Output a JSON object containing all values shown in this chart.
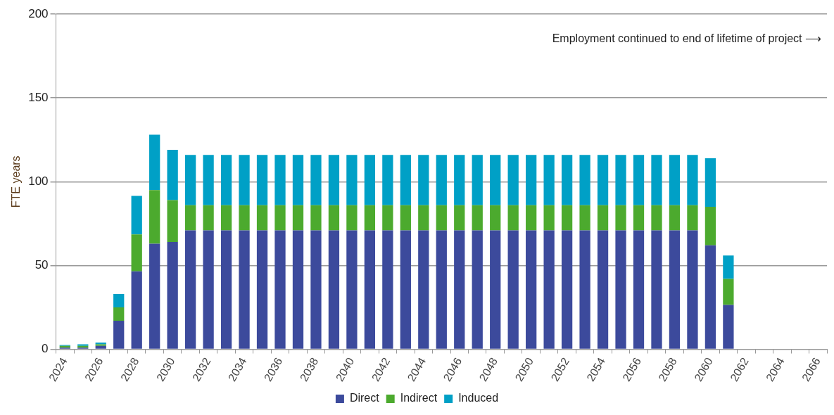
{
  "chart_data": {
    "type": "bar",
    "stacked": true,
    "ylabel": "FTE years",
    "categories": [
      "2024",
      null,
      "2026",
      null,
      "2028",
      null,
      "2030",
      null,
      "2032",
      null,
      "2034",
      null,
      "2036",
      null,
      "2038",
      null,
      "2040",
      null,
      "2042",
      null,
      "2044",
      null,
      "2046",
      null,
      "2048",
      null,
      "2050",
      null,
      "2052",
      null,
      "2054",
      null,
      "2056",
      null,
      "2058",
      null,
      "2060",
      null,
      "2062",
      null,
      "2064",
      null,
      "2066"
    ],
    "series": [
      {
        "name": "Direct",
        "color": "#3c4a9c",
        "values": [
          1,
          1,
          2,
          17,
          46.5,
          63,
          64,
          71,
          71,
          71,
          71,
          71,
          71,
          71,
          71,
          71,
          71,
          71,
          71,
          71,
          71,
          71,
          71,
          71,
          71,
          71,
          71,
          71,
          71,
          71,
          71,
          71,
          71,
          71,
          71,
          71,
          62,
          26.5,
          0,
          0,
          0,
          0,
          0
        ]
      },
      {
        "name": "Indirect",
        "color": "#4caa2e",
        "values": [
          1,
          1,
          1,
          8,
          22,
          32,
          25,
          15,
          15,
          15,
          15,
          15,
          15,
          15,
          15,
          15,
          15,
          15,
          15,
          15,
          15,
          15,
          15,
          15,
          15,
          15,
          15,
          15,
          15,
          15,
          15,
          15,
          15,
          15,
          15,
          15,
          23,
          15.5,
          0,
          0,
          0,
          0,
          0
        ]
      },
      {
        "name": "Induced",
        "color": "#00a0c6",
        "values": [
          0.5,
          1,
          1,
          8,
          23,
          33,
          30,
          30,
          30,
          30,
          30,
          30,
          30,
          30,
          30,
          30,
          30,
          30,
          30,
          30,
          30,
          30,
          30,
          30,
          30,
          30,
          30,
          30,
          30,
          30,
          30,
          30,
          30,
          30,
          30,
          30,
          29,
          14,
          0,
          0,
          0,
          0,
          0
        ]
      }
    ],
    "ylim": [
      0,
      200
    ],
    "yticks": [
      0,
      50,
      100,
      150,
      200
    ],
    "grid": "y",
    "legend": "bottom",
    "annotations": [
      "Employment continued to end of lifetime of project ⟶"
    ]
  }
}
